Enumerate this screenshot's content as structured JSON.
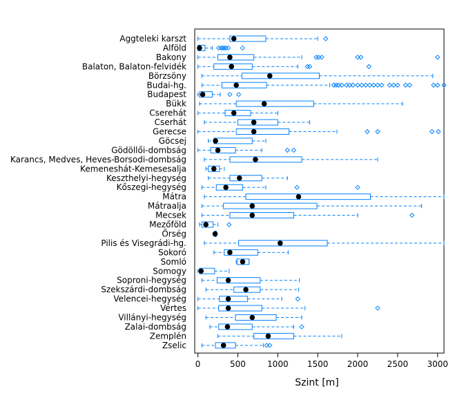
{
  "chart_data": {
    "type": "boxplot",
    "orientation": "horizontal",
    "xlabel": "Szint [m]",
    "xlim": [
      -40,
      3080
    ],
    "xticks": [
      0,
      500,
      1000,
      1500,
      2000,
      2500,
      3000
    ],
    "colors": {
      "box": "#0080ff",
      "median": "#000000",
      "frame": "#000000"
    },
    "series": [
      {
        "name": "Aggteleki karszt",
        "wlo": 0,
        "q1": 400,
        "median": 450,
        "q3": 850,
        "whi": 1500,
        "outliers": [
          1600
        ]
      },
      {
        "name": "Alföld",
        "wlo": 0,
        "q1": 0,
        "median": 20,
        "q3": 90,
        "whi": 180,
        "outliers": [
          260,
          290,
          310,
          330,
          350,
          380,
          560
        ]
      },
      {
        "name": "Bakony",
        "wlo": 0,
        "q1": 250,
        "median": 400,
        "q3": 700,
        "whi": 1300,
        "outliers": [
          1480,
          1510,
          1550,
          2000,
          2040,
          3000
        ]
      },
      {
        "name": "Balaton, Balaton-felvidék",
        "wlo": 0,
        "q1": 200,
        "median": 420,
        "q3": 680,
        "whi": 1250,
        "outliers": [
          1370,
          1400,
          2140
        ]
      },
      {
        "name": "Börzsöny",
        "wlo": 50,
        "q1": 550,
        "median": 900,
        "q3": 1520,
        "whi": 2940,
        "outliers": []
      },
      {
        "name": "Budai-hg.",
        "wlo": 50,
        "q1": 300,
        "median": 480,
        "q3": 860,
        "whi": 1650,
        "outliers": [
          1700,
          1730,
          1760,
          1800,
          1860,
          1900,
          1940,
          2000,
          2050,
          2100,
          2150,
          2200,
          2250,
          2300,
          2400,
          2450,
          2500,
          2600,
          2650,
          2950,
          3000,
          3080
        ]
      },
      {
        "name": "Budapest",
        "wlo": 0,
        "q1": 20,
        "median": 60,
        "q3": 180,
        "whi": 280,
        "outliers": [
          400,
          510
        ]
      },
      {
        "name": "Bükk",
        "wlo": 20,
        "q1": 480,
        "median": 830,
        "q3": 1450,
        "whi": 2560,
        "outliers": []
      },
      {
        "name": "Cserehát",
        "wlo": 0,
        "q1": 340,
        "median": 450,
        "q3": 660,
        "whi": 1000,
        "outliers": []
      },
      {
        "name": "Cserhát",
        "wlo": 80,
        "q1": 500,
        "median": 700,
        "q3": 1000,
        "whi": 1400,
        "outliers": []
      },
      {
        "name": "Gerecse",
        "wlo": 0,
        "q1": 480,
        "median": 700,
        "q3": 1140,
        "whi": 1740,
        "outliers": [
          2120,
          2250,
          2930,
          3010
        ]
      },
      {
        "name": "Göcsej",
        "wlo": 130,
        "q1": 200,
        "median": 220,
        "q3": 680,
        "whi": 850,
        "outliers": []
      },
      {
        "name": "Gödöllői-dombság",
        "wlo": 0,
        "q1": 160,
        "median": 250,
        "q3": 470,
        "whi": 800,
        "outliers": [
          1120,
          1200
        ]
      },
      {
        "name": "Karancs, Medves, Heves-Borsodi-dombság",
        "wlo": 80,
        "q1": 400,
        "median": 720,
        "q3": 1300,
        "whi": 2250,
        "outliers": []
      },
      {
        "name": "Kemeneshát-Kemesesalja",
        "wlo": 100,
        "q1": 130,
        "median": 200,
        "q3": 270,
        "whi": 330,
        "outliers": []
      },
      {
        "name": "Keszthelyi-hegység",
        "wlo": 130,
        "q1": 400,
        "median": 520,
        "q3": 800,
        "whi": 1120,
        "outliers": []
      },
      {
        "name": "Kőszegi-hegység",
        "wlo": 50,
        "q1": 230,
        "median": 350,
        "q3": 560,
        "whi": 850,
        "outliers": [
          1240,
          2000
        ]
      },
      {
        "name": "Mátra",
        "wlo": 80,
        "q1": 600,
        "median": 1260,
        "q3": 2160,
        "whi": 3080,
        "outliers": []
      },
      {
        "name": "Mátraalja",
        "wlo": 50,
        "q1": 320,
        "median": 680,
        "q3": 1490,
        "whi": 2800,
        "outliers": []
      },
      {
        "name": "Mecsek",
        "wlo": 50,
        "q1": 400,
        "median": 680,
        "q3": 1200,
        "whi": 2000,
        "outliers": [
          2680
        ]
      },
      {
        "name": "Mezőföld",
        "wlo": 20,
        "q1": 50,
        "median": 100,
        "q3": 190,
        "whi": 250,
        "outliers": [
          390
        ]
      },
      {
        "name": "Őrség",
        "wlo": 210,
        "q1": 210,
        "median": 215,
        "q3": 230,
        "whi": 230,
        "outliers": []
      },
      {
        "name": "Pilis és Visegrádi-hg.",
        "wlo": 80,
        "q1": 510,
        "median": 1030,
        "q3": 1620,
        "whi": 3080,
        "outliers": []
      },
      {
        "name": "Sokoró",
        "wlo": 200,
        "q1": 330,
        "median": 400,
        "q3": 750,
        "whi": 1130,
        "outliers": []
      },
      {
        "name": "Somló",
        "wlo": 480,
        "q1": 490,
        "median": 560,
        "q3": 640,
        "whi": 640,
        "outliers": []
      },
      {
        "name": "Somogy",
        "wlo": 0,
        "q1": 20,
        "median": 40,
        "q3": 210,
        "whi": 390,
        "outliers": []
      },
      {
        "name": "Soproni-hegység",
        "wlo": 50,
        "q1": 240,
        "median": 380,
        "q3": 780,
        "whi": 1270,
        "outliers": []
      },
      {
        "name": "Szekszárdi-dombság",
        "wlo": 100,
        "q1": 450,
        "median": 600,
        "q3": 780,
        "whi": 1260,
        "outliers": []
      },
      {
        "name": "Velencei-hegység",
        "wlo": 0,
        "q1": 270,
        "median": 380,
        "q3": 620,
        "whi": 1050,
        "outliers": [
          1250
        ]
      },
      {
        "name": "Vértes",
        "wlo": 0,
        "q1": 260,
        "median": 380,
        "q3": 800,
        "whi": 1340,
        "outliers": [
          2250
        ]
      },
      {
        "name": "Villányi-hegység",
        "wlo": 100,
        "q1": 470,
        "median": 680,
        "q3": 980,
        "whi": 1300,
        "outliers": []
      },
      {
        "name": "Zalai-dombság",
        "wlo": 150,
        "q1": 260,
        "median": 370,
        "q3": 680,
        "whi": 1200,
        "outliers": [
          1300
        ]
      },
      {
        "name": "Zemplén",
        "wlo": 250,
        "q1": 700,
        "median": 880,
        "q3": 1200,
        "whi": 1800,
        "outliers": []
      },
      {
        "name": "Zselic",
        "wlo": 50,
        "q1": 220,
        "median": 320,
        "q3": 470,
        "whi": 820,
        "outliers": [
          860,
          900
        ]
      }
    ]
  }
}
